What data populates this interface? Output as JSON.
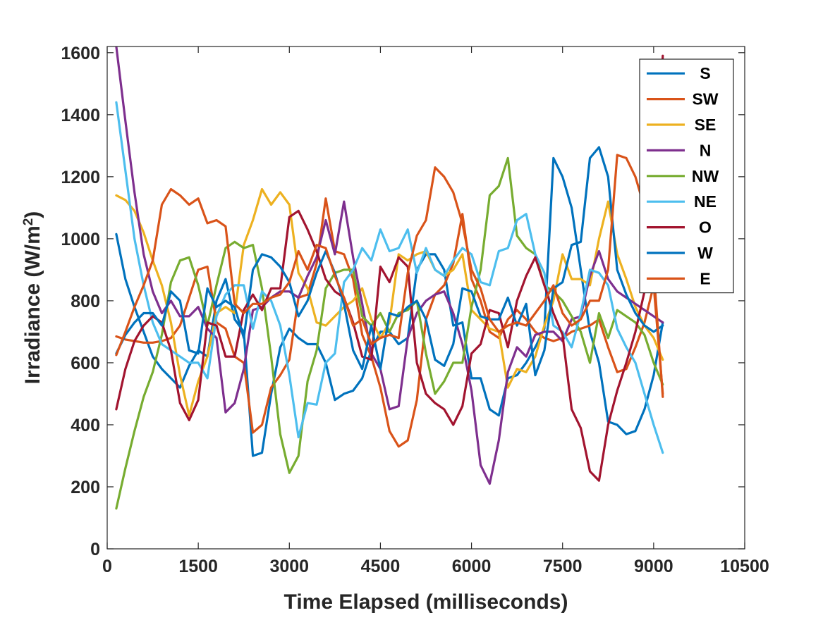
{
  "chart_data": {
    "type": "line",
    "title": "",
    "xlabel": "Time Elapsed (milliseconds)",
    "ylabel_main": "Irradiance (W/m",
    "ylabel_sup": "2",
    "ylabel_close": ")",
    "xlim": [
      0,
      10500
    ],
    "ylim": [
      0,
      1620
    ],
    "xticks": [
      0,
      1500,
      3000,
      4500,
      6000,
      7500,
      9000,
      10500
    ],
    "yticks": [
      0,
      200,
      400,
      600,
      800,
      1000,
      1200,
      1400,
      1600
    ],
    "xtick_labels": [
      "0",
      "1500",
      "3000",
      "4500",
      "6000",
      "7500",
      "9000",
      "10500"
    ],
    "ytick_labels": [
      "0",
      "200",
      "400",
      "600",
      "800",
      "1000",
      "1200",
      "1400",
      "1600"
    ],
    "grid": false,
    "legend_position": "top-right",
    "x": [
      150,
      300,
      450,
      600,
      750,
      900,
      1050,
      1200,
      1350,
      1500,
      1650,
      1800,
      1950,
      2100,
      2250,
      2400,
      2550,
      2700,
      2850,
      3000,
      3150,
      3300,
      3450,
      3600,
      3750,
      3900,
      4050,
      4200,
      4350,
      4500,
      4650,
      4800,
      4950,
      5100,
      5250,
      5400,
      5550,
      5700,
      5850,
      6000,
      6150,
      6300,
      6450,
      6600,
      6750,
      6900,
      7050,
      7200,
      7350,
      7500,
      7650,
      7800,
      7950,
      8100,
      8250,
      8400,
      8550,
      8700,
      8850,
      9000,
      9150
    ],
    "series": [
      {
        "name": "S",
        "color": "#0072BD",
        "values": [
          1015,
          870,
          780,
          700,
          620,
          580,
          550,
          520,
          590,
          640,
          620,
          800,
          870,
          740,
          700,
          300,
          310,
          500,
          650,
          710,
          680,
          660,
          660,
          600,
          480,
          500,
          510,
          550,
          640,
          700,
          700,
          660,
          680,
          900,
          950,
          950,
          900,
          720,
          730,
          550,
          550,
          450,
          430,
          550,
          560,
          600,
          650,
          710,
          1260,
          1200,
          1100,
          900,
          700,
          600,
          410,
          400,
          370,
          380,
          450,
          560,
          730
        ]
      },
      {
        "name": "SW",
        "color": "#D95319",
        "values": [
          685,
          675,
          670,
          665,
          665,
          670,
          680,
          720,
          810,
          900,
          910,
          730,
          710,
          620,
          600,
          375,
          400,
          520,
          560,
          610,
          810,
          820,
          920,
          1130,
          960,
          950,
          870,
          690,
          620,
          520,
          380,
          330,
          350,
          480,
          740,
          820,
          850,
          920,
          1080,
          870,
          800,
          700,
          680,
          740,
          770,
          740,
          700,
          680,
          670,
          680,
          700,
          710,
          720,
          740,
          650,
          570,
          580,
          650,
          730,
          850,
          500
        ]
      },
      {
        "name": "SE",
        "color": "#EDB120",
        "values": [
          1140,
          1125,
          1090,
          1020,
          930,
          850,
          730,
          560,
          430,
          540,
          620,
          760,
          780,
          760,
          980,
          1060,
          1160,
          1110,
          1150,
          1110,
          890,
          840,
          730,
          720,
          750,
          780,
          800,
          840,
          740,
          680,
          730,
          950,
          930,
          950,
          960,
          900,
          880,
          900,
          950,
          770,
          740,
          710,
          700,
          520,
          580,
          570,
          620,
          720,
          800,
          950,
          870,
          870,
          850,
          1000,
          1120,
          950,
          870,
          780,
          720,
          680,
          610
        ]
      },
      {
        "name": "N",
        "color": "#7E2F8E",
        "values": [
          1620,
          1380,
          1150,
          950,
          830,
          760,
          800,
          750,
          750,
          780,
          710,
          680,
          440,
          470,
          580,
          770,
          780,
          810,
          830,
          830,
          810,
          880,
          940,
          1060,
          950,
          1120,
          940,
          790,
          630,
          580,
          450,
          460,
          680,
          760,
          800,
          820,
          830,
          760,
          660,
          510,
          270,
          210,
          350,
          570,
          650,
          620,
          690,
          700,
          700,
          670,
          740,
          750,
          880,
          960,
          870,
          830,
          810,
          790,
          770,
          750,
          730
        ]
      },
      {
        "name": "NW",
        "color": "#77AC30",
        "values": [
          130,
          260,
          380,
          490,
          570,
          690,
          860,
          930,
          940,
          850,
          720,
          850,
          970,
          990,
          970,
          980,
          840,
          620,
          370,
          245,
          300,
          540,
          640,
          840,
          890,
          900,
          900,
          750,
          720,
          760,
          700,
          760,
          770,
          800,
          630,
          500,
          540,
          600,
          600,
          780,
          900,
          1140,
          1170,
          1260,
          1010,
          970,
          950,
          850,
          830,
          800,
          750,
          700,
          600,
          760,
          680,
          770,
          750,
          730,
          690,
          600,
          530
        ]
      },
      {
        "name": "NE",
        "color": "#4DBEEE",
        "values": [
          1440,
          1220,
          1000,
          850,
          730,
          660,
          640,
          620,
          600,
          600,
          550,
          750,
          820,
          850,
          850,
          710,
          830,
          800,
          720,
          560,
          360,
          470,
          465,
          600,
          630,
          860,
          900,
          970,
          930,
          1030,
          960,
          970,
          1030,
          890,
          970,
          900,
          880,
          930,
          970,
          950,
          860,
          850,
          960,
          970,
          1060,
          1080,
          950,
          890,
          720,
          700,
          650,
          760,
          900,
          890,
          850,
          710,
          650,
          600,
          500,
          400,
          310
        ]
      },
      {
        "name": "O",
        "color": "#A2142F",
        "values": [
          450,
          580,
          670,
          720,
          750,
          730,
          640,
          470,
          415,
          480,
          730,
          720,
          620,
          620,
          770,
          820,
          770,
          840,
          840,
          1070,
          1090,
          1030,
          960,
          870,
          830,
          810,
          730,
          620,
          610,
          910,
          860,
          940,
          910,
          600,
          500,
          470,
          450,
          400,
          460,
          630,
          660,
          770,
          760,
          650,
          800,
          880,
          940,
          850,
          760,
          690,
          450,
          390,
          250,
          220,
          400,
          510,
          600,
          700,
          830,
          1000,
          1590
        ]
      },
      {
        "name": "W",
        "color": "#0072BD",
        "values": [
          630,
          690,
          730,
          760,
          760,
          720,
          830,
          800,
          640,
          630,
          840,
          780,
          800,
          780,
          680,
          900,
          950,
          940,
          910,
          860,
          750,
          800,
          890,
          960,
          890,
          790,
          640,
          580,
          720,
          580,
          760,
          750,
          780,
          800,
          740,
          610,
          590,
          660,
          840,
          830,
          750,
          740,
          740,
          810,
          720,
          790,
          560,
          640,
          840,
          860,
          980,
          990,
          1260,
          1295,
          1200,
          900,
          820,
          760,
          720,
          700,
          720
        ]
      },
      {
        "name": "E",
        "color": "#D95319",
        "values": [
          625,
          700,
          780,
          850,
          930,
          1110,
          1160,
          1140,
          1110,
          1130,
          1050,
          1060,
          1040,
          790,
          760,
          790,
          790,
          810,
          820,
          860,
          960,
          900,
          980,
          970,
          880,
          810,
          720,
          740,
          660,
          680,
          690,
          680,
          890,
          1010,
          1060,
          1230,
          1200,
          1150,
          1050,
          900,
          840,
          740,
          700,
          720,
          730,
          720,
          760,
          800,
          850,
          760,
          720,
          740,
          800,
          800,
          900,
          1270,
          1260,
          1200,
          1100,
          900,
          490
        ]
      }
    ]
  }
}
